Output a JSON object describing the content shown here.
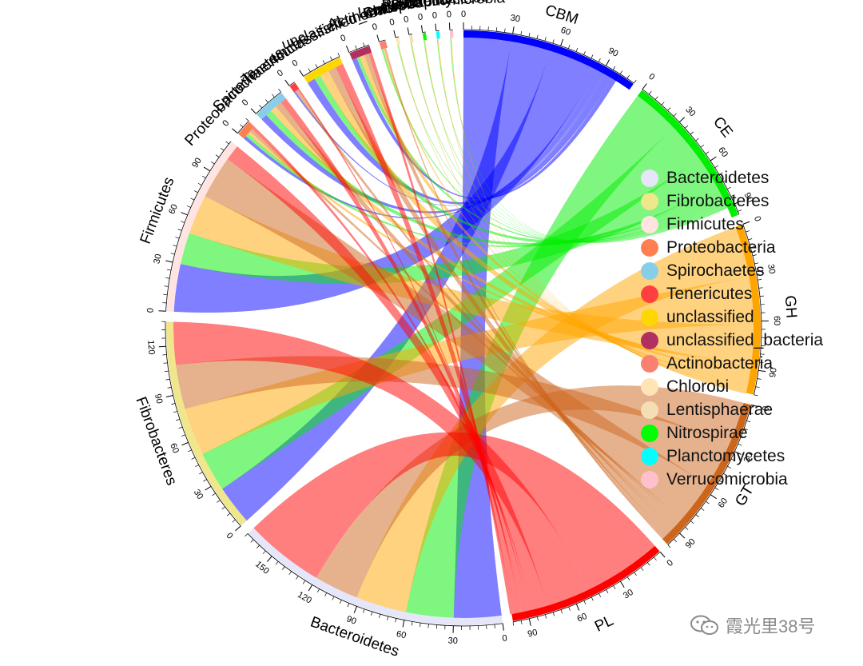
{
  "chart_data": {
    "type": "chord",
    "sectors": [
      {
        "name": "CBM",
        "size": 110,
        "color": "#0000FF",
        "side": "cazy",
        "ticks": [
          0,
          30,
          60,
          90
        ]
      },
      {
        "name": "CE",
        "size": 97,
        "color": "#00EE00",
        "side": "cazy",
        "ticks": [
          0,
          30,
          60,
          90
        ]
      },
      {
        "name": "GH",
        "size": 105,
        "color": "#FFA500",
        "side": "cazy",
        "ticks": [
          0,
          30,
          60,
          90
        ]
      },
      {
        "name": "GT",
        "size": 100,
        "color": "#CD661D",
        "side": "cazy",
        "ticks": [
          0,
          30,
          60,
          90
        ]
      },
      {
        "name": "PL",
        "size": 100,
        "color": "#FF0000",
        "side": "cazy",
        "ticks": [
          0,
          30,
          60,
          90
        ]
      },
      {
        "name": "Bacteroidetes",
        "size": 170,
        "color": "#E6E6FA",
        "side": "taxa",
        "ticks": [
          0,
          30,
          60,
          90,
          120,
          150
        ]
      },
      {
        "name": "Fibrobacteres",
        "size": 135,
        "color": "#F0E68C",
        "side": "taxa",
        "ticks": [
          0,
          30,
          60,
          90,
          120
        ]
      },
      {
        "name": "Firmicutes",
        "size": 112,
        "color": "#FFE4E1",
        "side": "taxa",
        "ticks": [
          0,
          30,
          60,
          90
        ]
      },
      {
        "name": "Proteobacteria",
        "size": 10,
        "color": "#FF7F50",
        "side": "taxa",
        "ticks": [
          0
        ]
      },
      {
        "name": "Spirochaetes",
        "size": 20,
        "color": "#87CEEB",
        "side": "taxa",
        "ticks": [
          0
        ]
      },
      {
        "name": "Tenericutes",
        "size": 4,
        "color": "#FF4040",
        "side": "taxa",
        "ticks": [
          0
        ]
      },
      {
        "name": "unclassified",
        "size": 25,
        "color": "#FFD700",
        "side": "taxa",
        "ticks": [
          0
        ]
      },
      {
        "name": "unclassified_bacteria",
        "size": 13,
        "color": "#B03060",
        "side": "taxa",
        "ticks": [
          0
        ]
      },
      {
        "name": "Actinobacteria",
        "size": 4,
        "color": "#FA8072",
        "side": "taxa",
        "ticks": [
          0
        ]
      },
      {
        "name": "Chlorobi",
        "size": 2,
        "color": "#FFE4B5",
        "side": "taxa",
        "ticks": [
          0
        ]
      },
      {
        "name": "Lentisphaerae",
        "size": 2,
        "color": "#F5DEB3",
        "side": "taxa",
        "ticks": [
          0
        ]
      },
      {
        "name": "Nitrospirae",
        "size": 2,
        "color": "#00FF00",
        "side": "taxa",
        "ticks": [
          0
        ]
      },
      {
        "name": "Planctomycetes",
        "size": 2,
        "color": "#00FFFF",
        "side": "taxa",
        "ticks": [
          0
        ]
      },
      {
        "name": "Verrucomicrobia",
        "size": 2,
        "color": "#FFC0CB",
        "side": "taxa",
        "ticks": [
          0
        ]
      }
    ],
    "links": [
      {
        "from": "CBM",
        "to": "Bacteroidetes",
        "value": 30
      },
      {
        "from": "CBM",
        "to": "Fibrobacteres",
        "value": 25
      },
      {
        "from": "CBM",
        "to": "Firmicutes",
        "value": 30
      },
      {
        "from": "CBM",
        "to": "Proteobacteria",
        "value": 2
      },
      {
        "from": "CBM",
        "to": "Spirochaetes",
        "value": 4
      },
      {
        "from": "CBM",
        "to": "Tenericutes",
        "value": 1
      },
      {
        "from": "CBM",
        "to": "unclassified",
        "value": 5
      },
      {
        "from": "CBM",
        "to": "unclassified_bacteria",
        "value": 3
      },
      {
        "from": "CE",
        "to": "Bacteroidetes",
        "value": 30
      },
      {
        "from": "CE",
        "to": "Fibrobacteres",
        "value": 25
      },
      {
        "from": "CE",
        "to": "Firmicutes",
        "value": 20
      },
      {
        "from": "CE",
        "to": "Proteobacteria",
        "value": 2
      },
      {
        "from": "CE",
        "to": "Spirochaetes",
        "value": 4
      },
      {
        "from": "CE",
        "to": "unclassified",
        "value": 4
      },
      {
        "from": "CE",
        "to": "unclassified_bacteria",
        "value": 2
      },
      {
        "from": "CE",
        "to": "Actinobacteria",
        "value": 1
      },
      {
        "from": "CE",
        "to": "Chlorobi",
        "value": 0.5
      },
      {
        "from": "CE",
        "to": "Lentisphaerae",
        "value": 0.5
      },
      {
        "from": "CE",
        "to": "Nitrospirae",
        "value": 0.5
      },
      {
        "from": "CE",
        "to": "Planctomycetes",
        "value": 0.5
      },
      {
        "from": "CE",
        "to": "Verrucomicrobia",
        "value": 0.5
      },
      {
        "from": "GH",
        "to": "Bacteroidetes",
        "value": 32
      },
      {
        "from": "GH",
        "to": "Fibrobacteres",
        "value": 30
      },
      {
        "from": "GH",
        "to": "Firmicutes",
        "value": 25
      },
      {
        "from": "GH",
        "to": "Proteobacteria",
        "value": 2
      },
      {
        "from": "GH",
        "to": "Spirochaetes",
        "value": 4
      },
      {
        "from": "GH",
        "to": "unclassified",
        "value": 6
      },
      {
        "from": "GH",
        "to": "unclassified_bacteria",
        "value": 3
      },
      {
        "from": "GH",
        "to": "Actinobacteria",
        "value": 1
      },
      {
        "from": "GH",
        "to": "Chlorobi",
        "value": 0.5
      },
      {
        "from": "GH",
        "to": "Lentisphaerae",
        "value": 0.5
      },
      {
        "from": "GH",
        "to": "Nitrospirae",
        "value": 0.5
      },
      {
        "from": "GH",
        "to": "Planctomycetes",
        "value": 0.5
      },
      {
        "from": "GH",
        "to": "Verrucomicrobia",
        "value": 0.5
      },
      {
        "from": "GT",
        "to": "Bacteroidetes",
        "value": 28
      },
      {
        "from": "GT",
        "to": "Fibrobacteres",
        "value": 28
      },
      {
        "from": "GT",
        "to": "Firmicutes",
        "value": 27
      },
      {
        "from": "GT",
        "to": "Proteobacteria",
        "value": 2
      },
      {
        "from": "GT",
        "to": "Spirochaetes",
        "value": 4
      },
      {
        "from": "GT",
        "to": "Tenericutes",
        "value": 2
      },
      {
        "from": "GT",
        "to": "unclassified",
        "value": 5
      },
      {
        "from": "GT",
        "to": "unclassified_bacteria",
        "value": 3
      },
      {
        "from": "GT",
        "to": "Actinobacteria",
        "value": 1
      },
      {
        "from": "PL",
        "to": "Bacteroidetes",
        "value": 50
      },
      {
        "from": "PL",
        "to": "Fibrobacteres",
        "value": 27
      },
      {
        "from": "PL",
        "to": "Firmicutes",
        "value": 10
      },
      {
        "from": "PL",
        "to": "Proteobacteria",
        "value": 2
      },
      {
        "from": "PL",
        "to": "Spirochaetes",
        "value": 4
      },
      {
        "from": "PL",
        "to": "Tenericutes",
        "value": 1
      },
      {
        "from": "PL",
        "to": "unclassified",
        "value": 5
      },
      {
        "from": "PL",
        "to": "unclassified_bacteria",
        "value": 2
      }
    ],
    "legend": {
      "placement": "right",
      "entries": [
        {
          "label": "Bacteroidetes",
          "color": "#E6E6FA"
        },
        {
          "label": "Fibrobacteres",
          "color": "#F0E68C"
        },
        {
          "label": "Firmicutes",
          "color": "#FFE4E1"
        },
        {
          "label": "Proteobacteria",
          "color": "#FF7F50"
        },
        {
          "label": "Spirochaetes",
          "color": "#87CEEB"
        },
        {
          "label": "Tenericutes",
          "color": "#FF4040"
        },
        {
          "label": "unclassified",
          "color": "#FFD700"
        },
        {
          "label": "unclassified_bacteria",
          "color": "#B03060"
        },
        {
          "label": "Actinobacteria",
          "color": "#FA8072"
        },
        {
          "label": "Chlorobi",
          "color": "#FFE4B5"
        },
        {
          "label": "Lentisphaerae",
          "color": "#F5DEB3"
        },
        {
          "label": " Nitrospirae",
          "color": "#00FF00"
        },
        {
          "label": "Planctomycetes",
          "color": "#00FFFF"
        },
        {
          "label": "Verrucomicrobia",
          "color": "#FFC0CB"
        }
      ]
    }
  },
  "watermark": {
    "text": "霞光里38号",
    "icon": "wechat-icon"
  }
}
